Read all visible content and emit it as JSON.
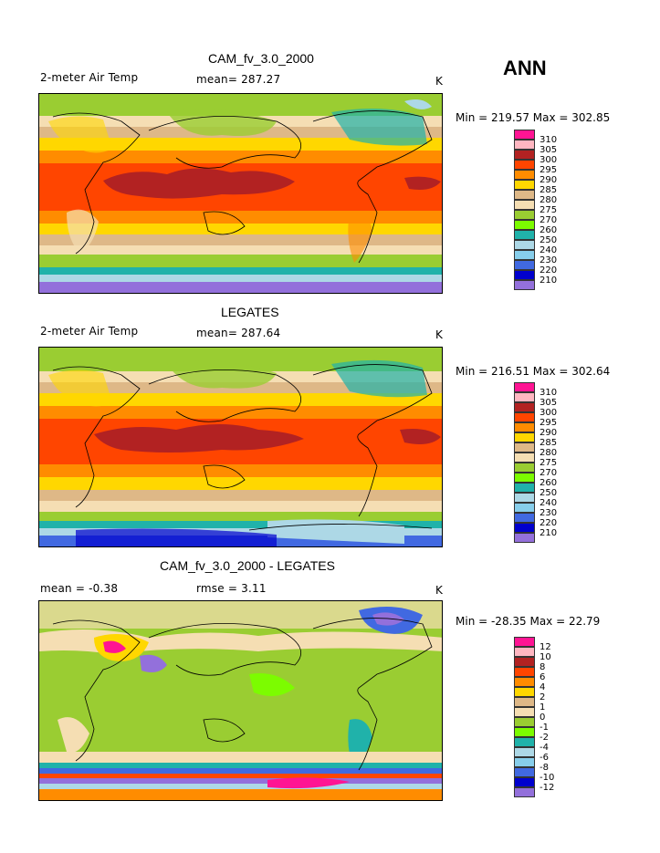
{
  "season": "ANN",
  "panels": [
    {
      "title": "CAM_fv_3.0_2000",
      "variable": "2-meter Air Temp",
      "stat": "mean= 287.27",
      "rmse": "",
      "units": "K",
      "minmax": "Min = 219.57 Max = 302.85",
      "legend": {
        "labels": [
          "310",
          "305",
          "300",
          "295",
          "290",
          "285",
          "280",
          "275",
          "270",
          "260",
          "250",
          "240",
          "230",
          "220",
          "210"
        ],
        "colors": [
          "#ff1493",
          "#ffb6c1",
          "#b22222",
          "#ff4500",
          "#ff8c00",
          "#ffd700",
          "#deb887",
          "#f5deb3",
          "#9acd32",
          "#7cfc00",
          "#20b2aa",
          "#add8e6",
          "#87ceeb",
          "#4169e1",
          "#0000cd",
          "#9370db"
        ]
      }
    },
    {
      "title": "LEGATES",
      "variable": "2-meter Air Temp",
      "stat": "mean= 287.64",
      "rmse": "",
      "units": "K",
      "minmax": "Min = 216.51 Max = 302.64",
      "legend": {
        "labels": [
          "310",
          "305",
          "300",
          "295",
          "290",
          "285",
          "280",
          "275",
          "270",
          "260",
          "250",
          "240",
          "230",
          "220",
          "210"
        ],
        "colors": [
          "#ff1493",
          "#ffb6c1",
          "#b22222",
          "#ff4500",
          "#ff8c00",
          "#ffd700",
          "#deb887",
          "#f5deb3",
          "#9acd32",
          "#7cfc00",
          "#20b2aa",
          "#add8e6",
          "#87ceeb",
          "#4169e1",
          "#0000cd",
          "#9370db"
        ]
      }
    },
    {
      "title": "CAM_fv_3.0_2000 - LEGATES",
      "variable": "mean =   -0.38",
      "stat": "",
      "rmse": "rmse =    3.11",
      "units": "K",
      "minmax": "Min = -28.35 Max =  22.79",
      "legend": {
        "labels": [
          "12",
          "10",
          "8",
          "6",
          "4",
          "2",
          "1",
          "0",
          "-1",
          "-2",
          "-4",
          "-6",
          "-8",
          "-10",
          "-12"
        ],
        "colors": [
          "#ff1493",
          "#ffb6c1",
          "#b22222",
          "#ff4500",
          "#ff8c00",
          "#ffd700",
          "#deb887",
          "#f5deb3",
          "#9acd32",
          "#7cfc00",
          "#20b2aa",
          "#add8e6",
          "#87ceeb",
          "#4169e1",
          "#0000cd",
          "#9370db"
        ]
      }
    }
  ]
}
